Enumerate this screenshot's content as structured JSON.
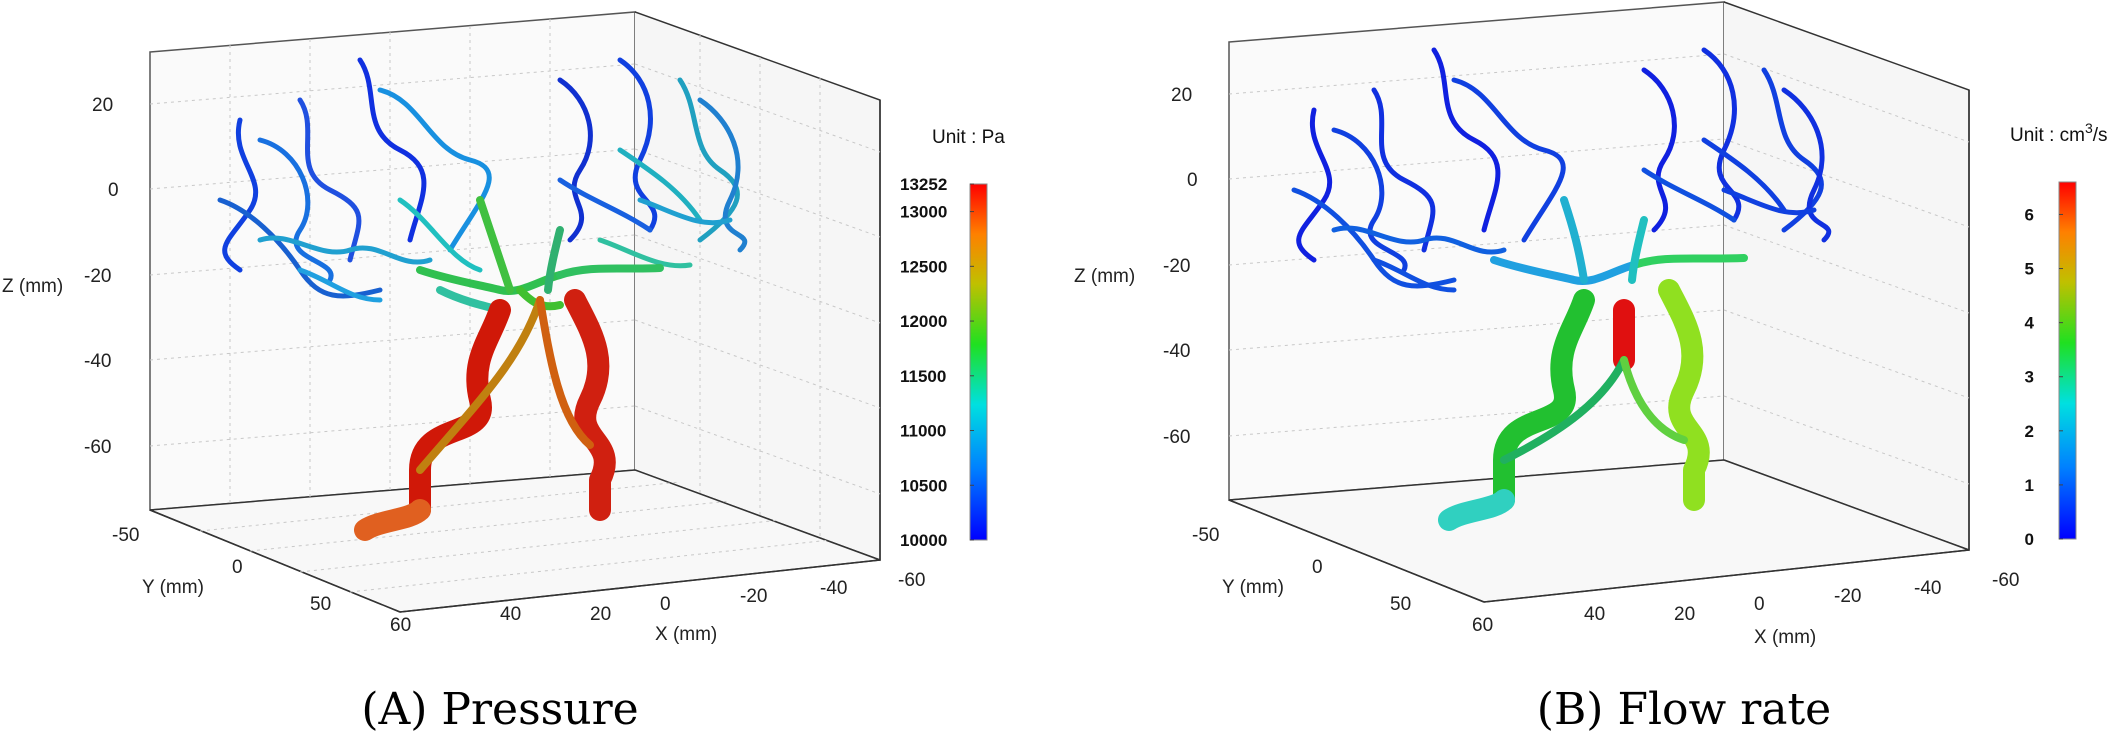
{
  "chart_data": [
    {
      "type": "surface",
      "panel_caption": "(A) Pressure",
      "xlabel": "X (mm)",
      "ylabel": "Y (mm)",
      "zlabel": "Z (mm)",
      "x_ticks": [
        "60",
        "40",
        "20",
        "0",
        "-20",
        "-40",
        "-60"
      ],
      "y_ticks": [
        "-50",
        "0",
        "50"
      ],
      "z_ticks": [
        "20",
        "0",
        "-20",
        "-40",
        "-60"
      ],
      "zlim": [
        -75,
        30
      ],
      "grid": true,
      "colorbar": {
        "unit_label": "Unit : Pa",
        "min": 10000,
        "max": 13252,
        "ticks": [
          "13252",
          "13000",
          "12500",
          "12000",
          "11500",
          "11000",
          "10500",
          "10000"
        ],
        "tick_values": [
          13252,
          13000,
          12500,
          12000,
          11500,
          11000,
          10500,
          10000
        ],
        "colormap": "jet"
      },
      "trunk_color": "#d01010"
    },
    {
      "type": "surface",
      "panel_caption": "(B) Flow rate",
      "xlabel": "X (mm)",
      "ylabel": "Y (mm)",
      "zlabel": "Z (mm)",
      "x_ticks": [
        "60",
        "40",
        "20",
        "0",
        "-20",
        "-40",
        "-60"
      ],
      "y_ticks": [
        "-50",
        "0",
        "50"
      ],
      "z_ticks": [
        "20",
        "0",
        "-20",
        "-40",
        "-60"
      ],
      "zlim": [
        -75,
        30
      ],
      "grid": true,
      "colorbar": {
        "unit_label_prefix": "Unit : cm",
        "unit_label_sup": "3",
        "unit_label_suffix": "/s",
        "min": 0,
        "max": 6.6,
        "ticks": [
          "6",
          "5",
          "4",
          "3",
          "2",
          "1",
          "0"
        ],
        "tick_values": [
          6,
          5,
          4,
          3,
          2,
          1,
          0
        ],
        "colormap": "jet"
      },
      "trunk_color": "#22c030"
    }
  ]
}
